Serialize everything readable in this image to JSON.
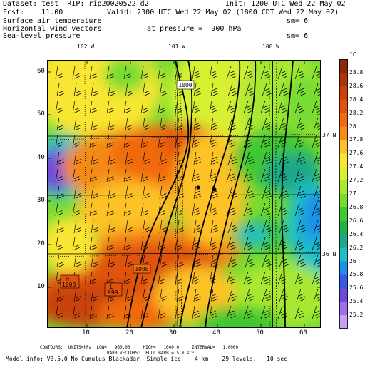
{
  "header": {
    "dataset": "Dataset: test  RIP: rip20020522 d2",
    "init": "Init: 1200 UTC Wed 22 May 02",
    "fcst": "Fcst:    11.00",
    "valid": "Valid: 2300 UTC Wed 22 May 02 (1800 CDT Wed 22 May 02)",
    "field1": "Surface air temperature",
    "field1_sm": "sm= 6",
    "field2": "Horizontal wind vectors",
    "field2_level": "at pressure =  900 hPa",
    "field3": "Sea-level pressure",
    "field3_sm": "sm= 6"
  },
  "map": {
    "longitude_labels": [
      "102 W",
      "101 W",
      "100 W"
    ],
    "latitude_labels": [
      "37 N",
      "36 N"
    ],
    "x_ticks": [
      "10",
      "20",
      "30",
      "40",
      "50",
      "60"
    ],
    "y_ticks": [
      "10",
      "20",
      "30",
      "40",
      "50",
      "60"
    ],
    "pressure_labels": [
      "1000",
      "1008"
    ],
    "high_low_labels": [
      {
        "letter": "H",
        "value": "1008"
      },
      {
        "letter": "L",
        "value": "999"
      }
    ]
  },
  "colorbar": {
    "unit": "°C",
    "labels": [
      "28.8",
      "28.6",
      "28.4",
      "28.2",
      "28",
      "27.8",
      "27.6",
      "27.4",
      "27.2",
      "27",
      "26.8",
      "26.6",
      "26.4",
      "26.2",
      "26",
      "25.8",
      "25.6",
      "25.4",
      "25.2"
    ],
    "colors": [
      "#8b2a08",
      "#a8360a",
      "#c8420c",
      "#e0520e",
      "#f06a10",
      "#f48a18",
      "#fcc228",
      "#f8e630",
      "#d8f030",
      "#a8e830",
      "#78dc30",
      "#40c830",
      "#22b04a",
      "#1ea888",
      "#1ec0c8",
      "#1e90e8",
      "#3a5ae0",
      "#6a4cd8",
      "#a070e8",
      "#c8a0f0"
    ]
  },
  "footer": {
    "line1": "CONTOURS:  UNITS=hPa  LOW=   960.00     HIGH=   1040.0     INTERVAL=   1.0000",
    "line2": "BARB VECTORS:  FULL BARB = 5 m s⁻¹",
    "line3": "Model info: V3.5.0 No Cumulus Blackadar  Simple ice    4 km,   29 levels,   10 sec"
  }
}
